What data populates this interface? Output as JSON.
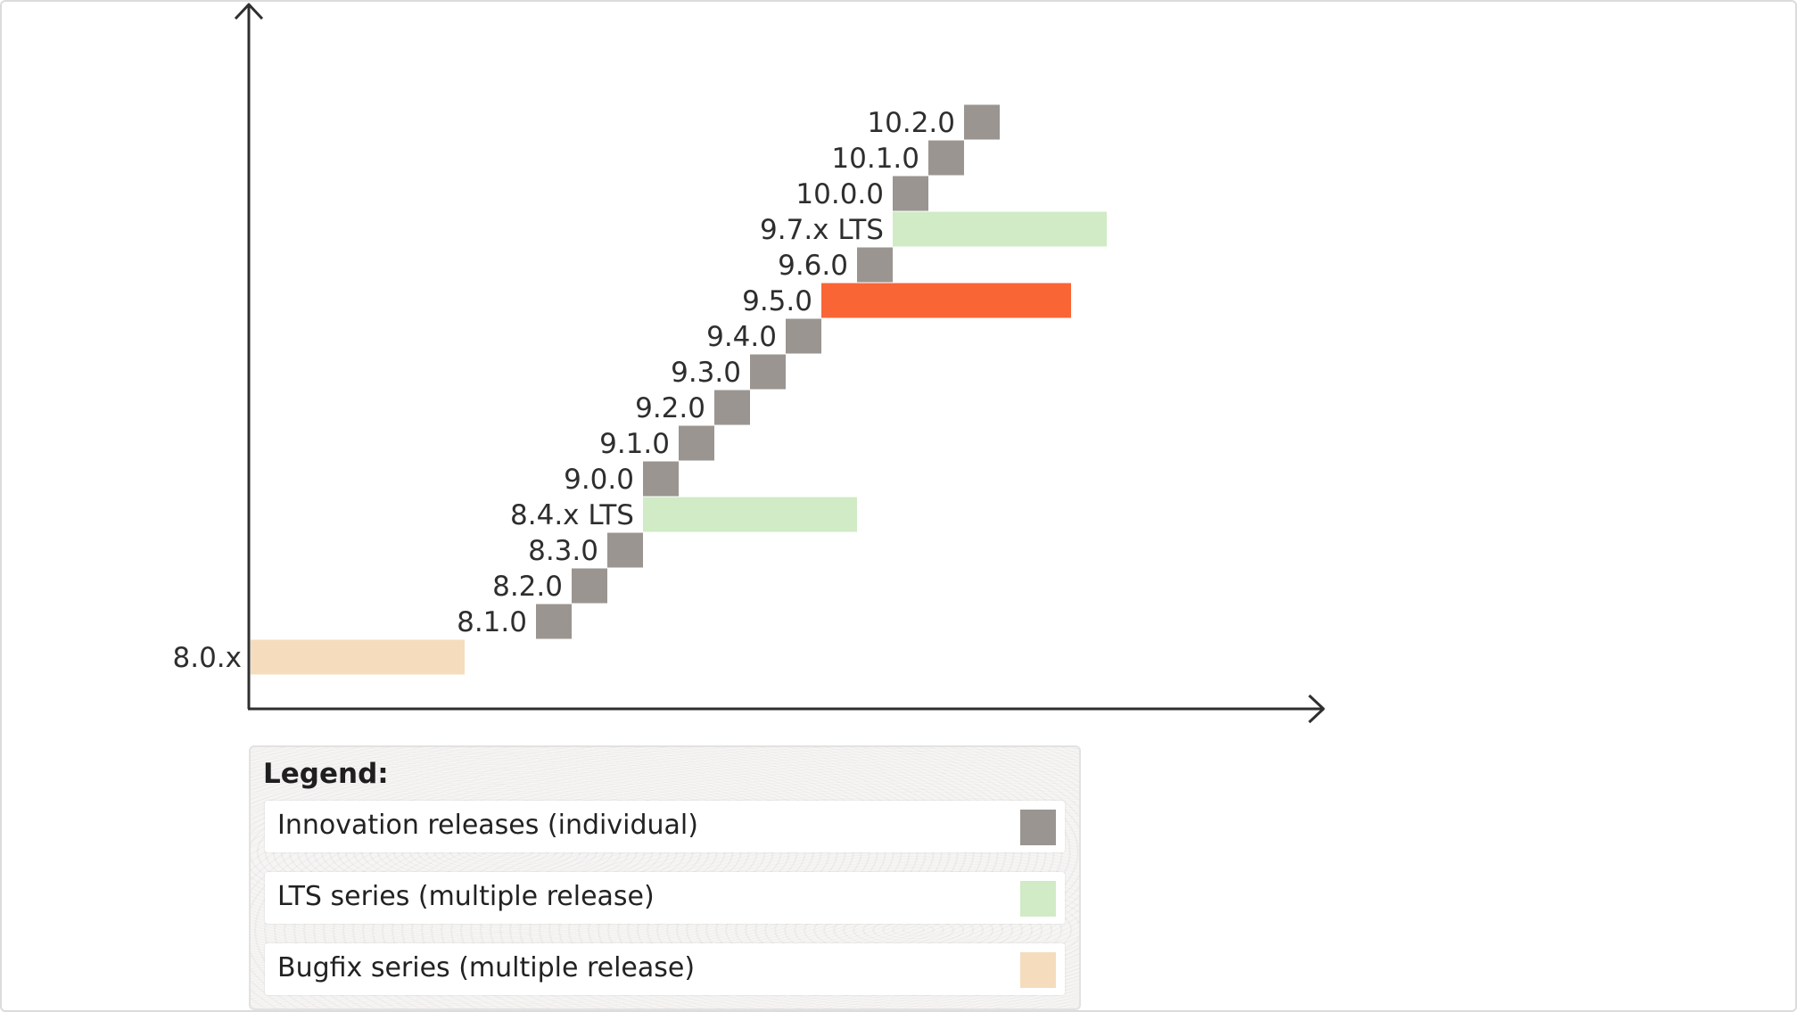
{
  "chart_data": {
    "type": "timeline",
    "title": "",
    "xlabel": "",
    "ylabel": "",
    "grid": false,
    "x_unit": "release step",
    "x_range": [
      0,
      19
    ],
    "releases": [
      {
        "label": "8.0.x",
        "kind": "bugfix",
        "start": 0,
        "end": 6,
        "color": "#f5dcbd"
      },
      {
        "label": "8.1.0",
        "kind": "innovation",
        "start": 8,
        "end": 9,
        "color": "#9a9590"
      },
      {
        "label": "8.2.0",
        "kind": "innovation",
        "start": 9,
        "end": 10,
        "color": "#9a9590"
      },
      {
        "label": "8.3.0",
        "kind": "innovation",
        "start": 10,
        "end": 11,
        "color": "#9a9590"
      },
      {
        "label": "8.4.x LTS",
        "kind": "lts",
        "start": 11,
        "end": 17,
        "color": "#d0ebc5"
      },
      {
        "label": "9.0.0",
        "kind": "innovation",
        "start": 11,
        "end": 12,
        "color": "#9a9590"
      },
      {
        "label": "9.1.0",
        "kind": "innovation",
        "start": 12,
        "end": 13,
        "color": "#9a9590"
      },
      {
        "label": "9.2.0",
        "kind": "innovation",
        "start": 13,
        "end": 14,
        "color": "#9a9590"
      },
      {
        "label": "9.3.0",
        "kind": "innovation",
        "start": 14,
        "end": 15,
        "color": "#9a9590"
      },
      {
        "label": "9.4.0",
        "kind": "innovation",
        "start": 15,
        "end": 16,
        "color": "#9a9590"
      },
      {
        "label": "9.5.0",
        "kind": "highlight",
        "start": 16,
        "end": 23,
        "color": "#f96534"
      },
      {
        "label": "9.6.0",
        "kind": "innovation",
        "start": 17,
        "end": 18,
        "color": "#9a9590"
      },
      {
        "label": "9.7.x LTS",
        "kind": "lts",
        "start": 18,
        "end": 24,
        "color": "#d0ebc5"
      },
      {
        "label": "10.0.0",
        "kind": "innovation",
        "start": 18,
        "end": 19,
        "color": "#9a9590"
      },
      {
        "label": "10.1.0",
        "kind": "innovation",
        "start": 19,
        "end": 20,
        "color": "#9a9590"
      },
      {
        "label": "10.2.0",
        "kind": "innovation",
        "start": 20,
        "end": 21,
        "color": "#9a9590"
      }
    ]
  },
  "legend": {
    "title": "Legend:",
    "items": [
      {
        "label": "Innovation releases (individual)",
        "color": "#9a9590"
      },
      {
        "label": "LTS series (multiple release)",
        "color": "#d0ebc5"
      },
      {
        "label": "Bugfix series (multiple release)",
        "color": "#f5dcbd"
      }
    ]
  }
}
